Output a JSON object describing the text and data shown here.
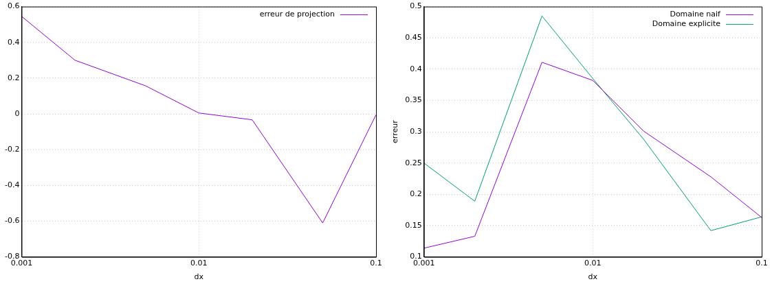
{
  "chart_data": [
    {
      "type": "line",
      "xlabel": "dx",
      "log": "x",
      "x": [
        0.001,
        0.002,
        0.005,
        0.01,
        0.02,
        0.05,
        0.1
      ],
      "xlim": [
        0.001,
        0.1
      ],
      "xticks": [
        0.001,
        0.01,
        0.1
      ],
      "ylim": [
        -0.8,
        0.6
      ],
      "yticks": [
        -0.8,
        -0.6,
        -0.4,
        -0.2,
        0,
        0.2,
        0.4,
        0.6
      ],
      "grid": true,
      "legend": "top right",
      "marker": "none",
      "series": [
        {
          "name": "erreur de projection",
          "color": "#9400d3",
          "values": [
            0.545,
            0.3,
            0.157,
            0.005,
            -0.033,
            -0.61,
            -0.005
          ]
        }
      ]
    },
    {
      "type": "line",
      "xlabel": "dx",
      "ylabel": "erreur",
      "log": "x",
      "x": [
        0.001,
        0.002,
        0.005,
        0.01,
        0.02,
        0.05,
        0.1
      ],
      "xlim": [
        0.001,
        0.1
      ],
      "xticks": [
        0.001,
        0.01,
        0.1
      ],
      "ylim": [
        0.1,
        0.5
      ],
      "yticks": [
        0.1,
        0.15,
        0.2,
        0.25,
        0.3,
        0.35,
        0.4,
        0.45,
        0.5
      ],
      "grid": true,
      "legend": "top right",
      "marker": "none",
      "series": [
        {
          "name": "Domaine naif",
          "color": "#9400d3",
          "values": [
            0.114,
            0.133,
            0.411,
            0.382,
            0.301,
            0.228,
            0.163
          ]
        },
        {
          "name": "Domaine explicite",
          "color": "#009e73",
          "values": [
            0.25,
            0.189,
            0.485,
            0.385,
            0.288,
            0.142,
            0.164
          ]
        }
      ]
    }
  ]
}
